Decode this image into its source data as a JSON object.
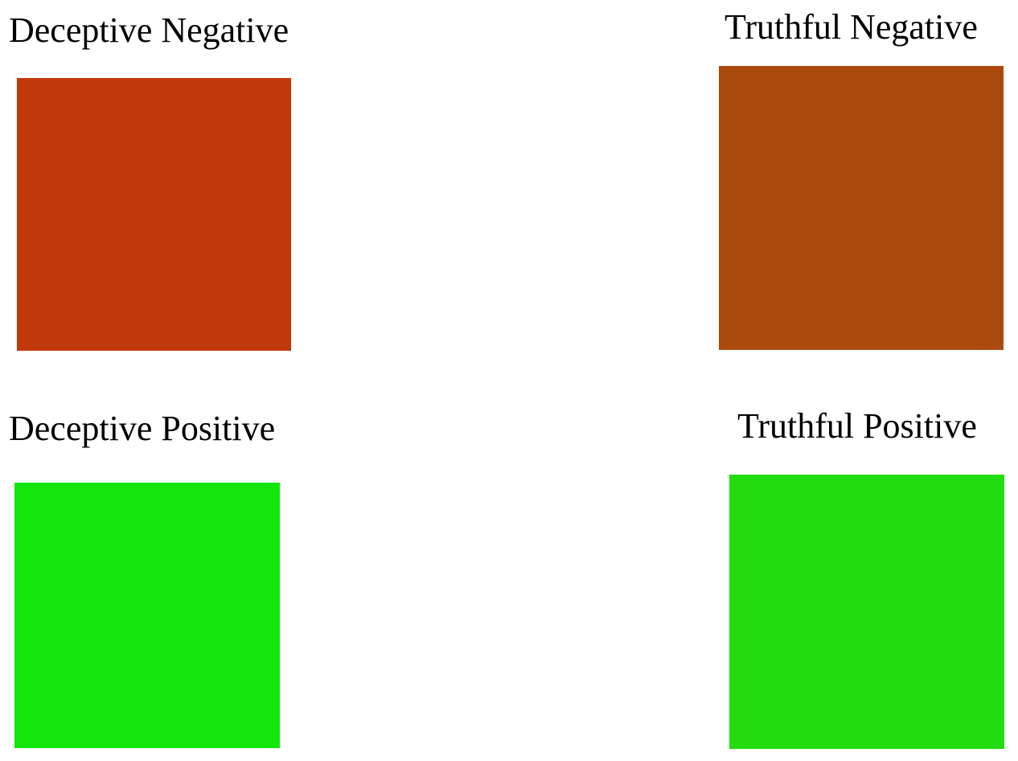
{
  "quadrants": [
    {
      "id": "dn",
      "label": "Deceptive Negative",
      "color": "#c1380a"
    },
    {
      "id": "tn",
      "label": "Truthful Negative",
      "color": "#ab4a0d"
    },
    {
      "id": "dp",
      "label": "Deceptive Positive",
      "color": "#13e60a"
    },
    {
      "id": "tp",
      "label": "Truthful Positive",
      "color": "#22dc0f"
    }
  ]
}
